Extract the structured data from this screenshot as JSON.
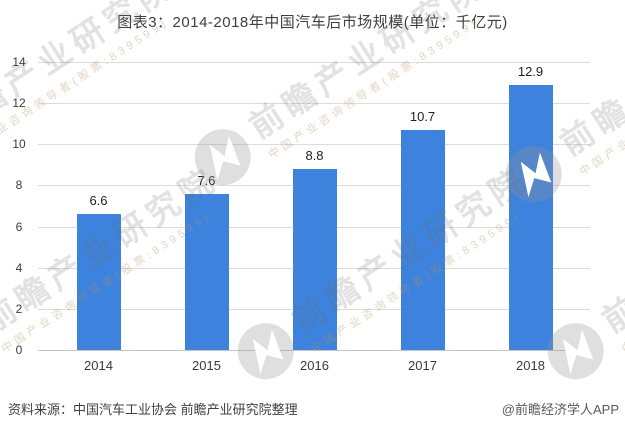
{
  "title": "图表3：2014-2018年中国汽车后市场规模(单位：千亿元)",
  "footer": {
    "source": "资料来源：中国汽车工业协会 前瞻产业研究院整理",
    "credit": "@前瞻经济学人APP"
  },
  "watermark": {
    "brand": "前瞻产业研究院",
    "tagline": "中国产业咨询领导者(股票:839599)"
  },
  "colors": {
    "bar": "#3d82dd",
    "grid": "#dcdcdc",
    "axis": "#c4c4c4",
    "title_text": "#3f3f3f",
    "tick_text": "#3a3a3a",
    "value_text": "#1f1f1f",
    "source_text": "#404040",
    "credit_text": "#595959"
  },
  "chart_data": {
    "type": "bar",
    "categories": [
      "2014",
      "2015",
      "2016",
      "2017",
      "2018"
    ],
    "values": [
      6.6,
      7.6,
      8.8,
      10.7,
      12.9
    ],
    "title": "图表3：2014-2018年中国汽车后市场规模(单位：千亿元)",
    "xlabel": "",
    "ylabel": "",
    "unit": "千亿元",
    "ylim": [
      0,
      14
    ],
    "yticks": [
      0,
      2,
      4,
      6,
      8,
      10,
      12,
      14
    ],
    "grid": true,
    "legend": false
  }
}
